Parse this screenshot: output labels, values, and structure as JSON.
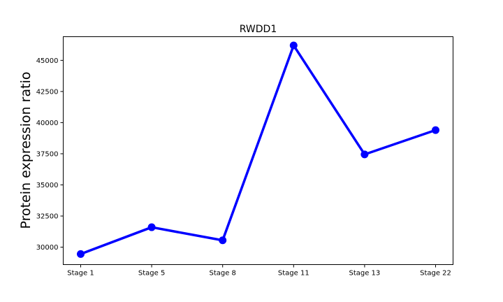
{
  "chart_data": {
    "type": "line",
    "title": "RWDD1",
    "xlabel": "",
    "ylabel": "Protein expression ratio",
    "categories": [
      "Stage 1",
      "Stage 5",
      "Stage 8",
      "Stage 11",
      "Stage 13",
      "Stage 22"
    ],
    "series": [
      {
        "values": [
          29450,
          31600,
          30550,
          46200,
          37450,
          39400
        ]
      }
    ],
    "ylim": [
      28600,
      46900
    ],
    "yticks": [
      30000,
      32500,
      35000,
      37500,
      40000,
      42500,
      45000
    ],
    "ytick_labels": [
      "30000",
      "32500",
      "35000",
      "37500",
      "40000",
      "42500",
      "45000"
    ],
    "grid": false,
    "legend": "none",
    "colors": {
      "line": "#0000ff",
      "marker": "#0000ff",
      "axes": "#000000",
      "background": "#ffffff"
    }
  }
}
